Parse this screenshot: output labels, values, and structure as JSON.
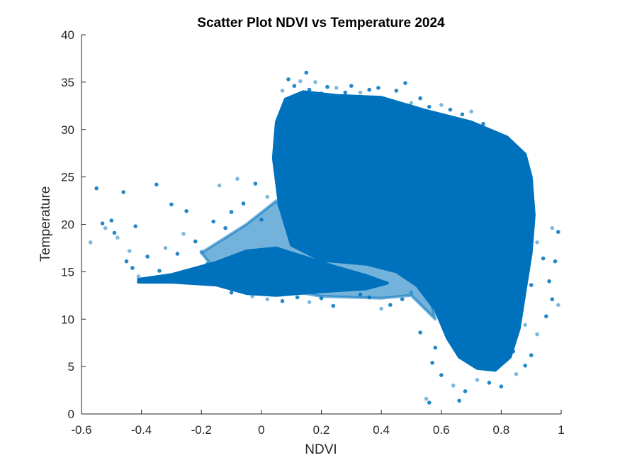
{
  "chart_data": {
    "type": "scatter",
    "title": "Scatter Plot NDVI vs Temperature 2024",
    "xlabel": "NDVI",
    "ylabel": "Temperature",
    "xlim": [
      -0.6,
      1
    ],
    "ylim": [
      0,
      40
    ],
    "xticks": [
      "-0.6",
      "-0.4",
      "-0.2",
      "0",
      "0.2",
      "0.4",
      "0.6",
      "0.8",
      "1"
    ],
    "xtick_values": [
      -0.6,
      -0.4,
      -0.2,
      0,
      0.2,
      0.4,
      0.6,
      0.8,
      1
    ],
    "yticks": [
      "0",
      "5",
      "10",
      "15",
      "20",
      "25",
      "30",
      "35",
      "40"
    ],
    "ytick_values": [
      0,
      5,
      10,
      15,
      20,
      25,
      30,
      35,
      40
    ],
    "grid": false,
    "marker_color": "#0072BD",
    "series": [
      {
        "values": [
          [
            -0.57,
            18.1
          ],
          [
            -0.55,
            23.8
          ],
          [
            -0.53,
            20.1
          ],
          [
            -0.52,
            19.6
          ],
          [
            -0.5,
            20.4
          ],
          [
            -0.49,
            19.1
          ],
          [
            -0.48,
            18.6
          ],
          [
            -0.46,
            23.4
          ],
          [
            -0.45,
            16.1
          ],
          [
            -0.44,
            17.2
          ],
          [
            -0.43,
            15.4
          ],
          [
            -0.42,
            19.8
          ],
          [
            -0.41,
            14.5
          ],
          [
            -0.4,
            14.2
          ],
          [
            -0.38,
            16.6
          ],
          [
            -0.36,
            14.0
          ],
          [
            -0.35,
            24.2
          ],
          [
            -0.34,
            15.1
          ],
          [
            -0.32,
            17.5
          ],
          [
            -0.3,
            22.1
          ],
          [
            -0.28,
            16.9
          ],
          [
            -0.26,
            19.0
          ],
          [
            -0.25,
            21.4
          ],
          [
            -0.22,
            18.2
          ],
          [
            -0.2,
            17.1
          ],
          [
            -0.18,
            15.8
          ],
          [
            -0.16,
            20.3
          ],
          [
            -0.14,
            24.1
          ],
          [
            -0.12,
            19.6
          ],
          [
            -0.1,
            21.3
          ],
          [
            -0.08,
            24.8
          ],
          [
            -0.06,
            22.2
          ],
          [
            -0.05,
            13.6
          ],
          [
            -0.03,
            12.4
          ],
          [
            -0.02,
            24.3
          ],
          [
            0.0,
            20.5
          ],
          [
            0.02,
            22.9
          ],
          [
            0.04,
            13.1
          ],
          [
            0.06,
            23.5
          ],
          [
            0.07,
            34.1
          ],
          [
            0.09,
            35.3
          ],
          [
            0.11,
            34.6
          ],
          [
            0.13,
            35.1
          ],
          [
            0.15,
            36.0
          ],
          [
            0.16,
            34.2
          ],
          [
            0.18,
            35.0
          ],
          [
            0.2,
            33.8
          ],
          [
            0.22,
            34.5
          ],
          [
            0.25,
            34.4
          ],
          [
            0.28,
            33.9
          ],
          [
            0.3,
            34.6
          ],
          [
            0.33,
            33.9
          ],
          [
            0.36,
            34.2
          ],
          [
            0.39,
            34.4
          ],
          [
            0.42,
            33.1
          ],
          [
            0.45,
            34.1
          ],
          [
            0.48,
            34.9
          ],
          [
            0.5,
            32.8
          ],
          [
            0.53,
            33.3
          ],
          [
            0.56,
            32.4
          ],
          [
            0.6,
            32.6
          ],
          [
            0.63,
            32.1
          ],
          [
            0.67,
            31.6
          ],
          [
            0.7,
            31.9
          ],
          [
            0.74,
            30.6
          ],
          [
            0.78,
            29.4
          ],
          [
            0.82,
            28.2
          ],
          [
            0.86,
            27.0
          ],
          [
            0.9,
            24.6
          ],
          [
            0.92,
            18.1
          ],
          [
            0.94,
            16.4
          ],
          [
            0.96,
            14.0
          ],
          [
            0.97,
            19.6
          ],
          [
            0.98,
            16.1
          ],
          [
            0.99,
            19.2
          ],
          [
            0.99,
            11.5
          ],
          [
            0.97,
            12.1
          ],
          [
            0.95,
            10.3
          ],
          [
            0.92,
            8.4
          ],
          [
            0.9,
            6.2
          ],
          [
            0.88,
            5.1
          ],
          [
            0.85,
            4.2
          ],
          [
            0.8,
            2.9
          ],
          [
            0.76,
            3.3
          ],
          [
            0.72,
            3.6
          ],
          [
            0.68,
            2.4
          ],
          [
            0.66,
            1.4
          ],
          [
            0.64,
            3.0
          ],
          [
            0.6,
            4.1
          ],
          [
            0.57,
            5.4
          ],
          [
            0.55,
            1.6
          ],
          [
            0.56,
            1.2
          ],
          [
            0.53,
            8.6
          ],
          [
            0.5,
            12.8
          ],
          [
            0.47,
            12.1
          ],
          [
            0.43,
            11.5
          ],
          [
            0.4,
            11.1
          ],
          [
            0.36,
            12.3
          ],
          [
            0.33,
            12.6
          ],
          [
            0.28,
            13.1
          ],
          [
            0.24,
            11.4
          ],
          [
            0.2,
            12.2
          ],
          [
            0.16,
            11.8
          ],
          [
            0.12,
            12.3
          ],
          [
            0.07,
            11.9
          ],
          [
            0.02,
            12.1
          ],
          [
            -0.05,
            13.0
          ],
          [
            -0.1,
            12.8
          ],
          [
            -0.25,
            14.0
          ],
          [
            0.58,
            7.0
          ],
          [
            0.62,
            9.1
          ],
          [
            0.7,
            6.4
          ],
          [
            0.78,
            5.0
          ],
          [
            0.84,
            6.6
          ],
          [
            0.88,
            9.4
          ],
          [
            0.9,
            13.6
          ],
          [
            0.85,
            21.0
          ],
          [
            0.75,
            24.1
          ],
          [
            0.62,
            27.0
          ],
          [
            0.55,
            28.4
          ],
          [
            0.45,
            29.8
          ],
          [
            0.35,
            30.6
          ],
          [
            0.25,
            31.1
          ],
          [
            0.15,
            29.0
          ],
          [
            0.08,
            27.6
          ],
          [
            0.06,
            30.2
          ],
          [
            0.1,
            22.0
          ],
          [
            0.2,
            18.6
          ],
          [
            0.3,
            17.2
          ],
          [
            0.4,
            16.8
          ],
          [
            0.5,
            18.9
          ],
          [
            0.6,
            20.8
          ],
          [
            0.7,
            16.0
          ],
          [
            0.8,
            14.8
          ],
          [
            0.65,
            11.0
          ],
          [
            0.72,
            9.8
          ]
        ]
      }
    ]
  }
}
